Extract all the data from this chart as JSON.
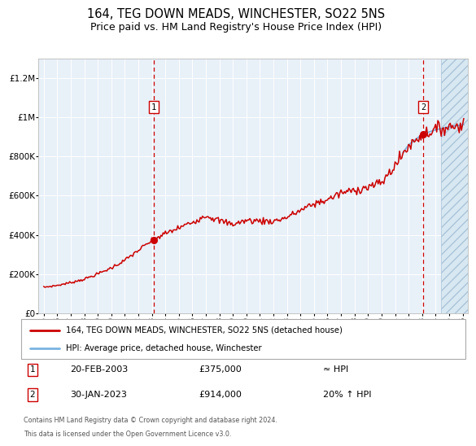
{
  "title": "164, TEG DOWN MEADS, WINCHESTER, SO22 5NS",
  "subtitle": "Price paid vs. HM Land Registry's House Price Index (HPI)",
  "title_fontsize": 10.5,
  "subtitle_fontsize": 9,
  "bg_color": "#e8f0f8",
  "grid_color": "#ffffff",
  "ylim": [
    0,
    1300000
  ],
  "xlim_start": 1994.6,
  "xlim_end": 2026.4,
  "yticks": [
    0,
    200000,
    400000,
    600000,
    800000,
    1000000,
    1200000
  ],
  "ytick_labels": [
    "£0",
    "£200K",
    "£400K",
    "£600K",
    "£800K",
    "£1M",
    "£1.2M"
  ],
  "xticks": [
    1995,
    1996,
    1997,
    1998,
    1999,
    2000,
    2001,
    2002,
    2003,
    2004,
    2005,
    2006,
    2007,
    2008,
    2009,
    2010,
    2011,
    2012,
    2013,
    2014,
    2015,
    2016,
    2017,
    2018,
    2019,
    2020,
    2021,
    2022,
    2023,
    2024,
    2025,
    2026
  ],
  "hpi_color": "#7ab3e0",
  "price_color": "#cc0000",
  "vline_color": "#cc0000",
  "sale1_year": 2003.13,
  "sale1_price": 375000,
  "sale2_year": 2023.08,
  "sale2_price": 914000,
  "legend_label_price": "164, TEG DOWN MEADS, WINCHESTER, SO22 5NS (detached house)",
  "legend_label_hpi": "HPI: Average price, detached house, Winchester",
  "footer_line1": "Contains HM Land Registry data © Crown copyright and database right 2024.",
  "footer_line2": "This data is licensed under the Open Government Licence v3.0.",
  "sale1_date": "20-FEB-2003",
  "sale1_amount": "£375,000",
  "sale1_hpi": "≈ HPI",
  "sale2_date": "30-JAN-2023",
  "sale2_amount": "£914,000",
  "sale2_hpi": "20% ↑ HPI",
  "hatch_start": 2024.42
}
